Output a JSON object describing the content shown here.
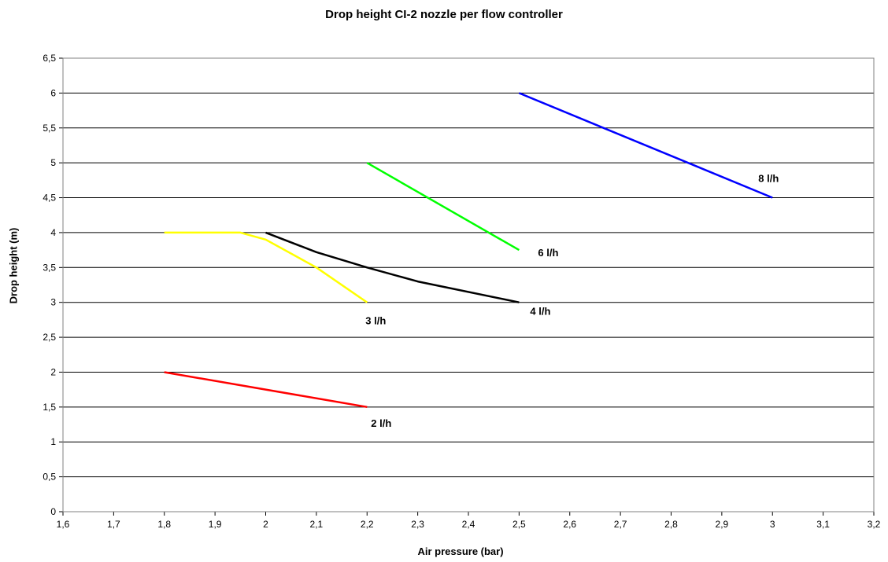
{
  "chart_data": {
    "type": "line",
    "title": "Drop height CI-2 nozzle per flow controller",
    "xlabel": "Air pressure (bar)",
    "ylabel": "Drop height (m)",
    "xlim": [
      1.6,
      3.2
    ],
    "ylim": [
      0,
      6.5
    ],
    "x_ticks": [
      "1,6",
      "1,7",
      "1,8",
      "1,9",
      "2",
      "2,1",
      "2,2",
      "2,3",
      "2,4",
      "2,5",
      "2,6",
      "2,7",
      "2,8",
      "2,9",
      "3",
      "3,1",
      "3,2"
    ],
    "y_ticks": [
      "0",
      "0,5",
      "1",
      "1,5",
      "2",
      "2,5",
      "3",
      "3,5",
      "4",
      "4,5",
      "5",
      "5,5",
      "6",
      "6,5"
    ],
    "grid": "horizontal",
    "series": [
      {
        "name": "2 l/h",
        "color": "#ff0000",
        "points": [
          [
            1.8,
            2.0
          ],
          [
            2.2,
            1.5
          ]
        ]
      },
      {
        "name": "3 l/h",
        "color": "#ffff00",
        "points": [
          [
            1.8,
            4.0
          ],
          [
            1.95,
            4.0
          ],
          [
            2.0,
            3.9
          ],
          [
            2.1,
            3.5
          ],
          [
            2.2,
            3.0
          ]
        ]
      },
      {
        "name": "4 l/h",
        "color": "#000000",
        "points": [
          [
            2.0,
            4.0
          ],
          [
            2.1,
            3.72
          ],
          [
            2.2,
            3.5
          ],
          [
            2.3,
            3.3
          ],
          [
            2.5,
            3.0
          ]
        ]
      },
      {
        "name": "6 l/h",
        "color": "#00ff00",
        "points": [
          [
            2.2,
            5.0
          ],
          [
            2.5,
            3.75
          ]
        ]
      },
      {
        "name": "8 l/h",
        "color": "#0000ff",
        "points": [
          [
            2.5,
            6.0
          ],
          [
            3.0,
            4.5
          ]
        ]
      }
    ]
  }
}
